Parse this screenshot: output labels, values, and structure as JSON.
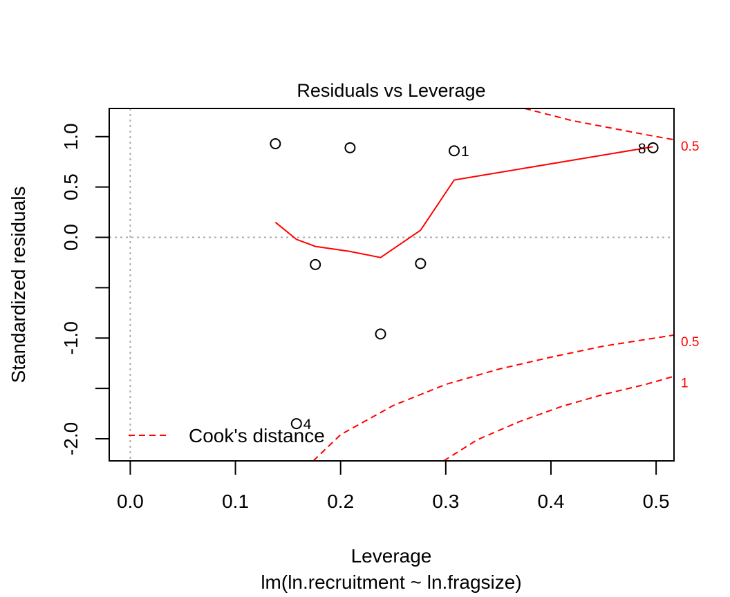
{
  "chart_data": {
    "type": "scatter",
    "title": "Residuals vs Leverage",
    "xlabel": "Leverage",
    "sublabel": "lm(ln.recruitment ~ ln.fragsize)",
    "ylabel": "Standardized residuals",
    "xlim": [
      -0.02,
      0.517
    ],
    "ylim": [
      -2.22,
      1.28
    ],
    "x_ticks": [
      {
        "value": 0.0,
        "label": "0.0"
      },
      {
        "value": 0.1,
        "label": "0.1"
      },
      {
        "value": 0.2,
        "label": "0.2"
      },
      {
        "value": 0.3,
        "label": "0.3"
      },
      {
        "value": 0.4,
        "label": "0.4"
      },
      {
        "value": 0.5,
        "label": "0.5"
      }
    ],
    "y_ticks": [
      {
        "value": 1.0,
        "label": "1.0"
      },
      {
        "value": 0.5,
        "label": "0.5"
      },
      {
        "value": 0.0,
        "label": "0.0"
      },
      {
        "value": -0.5,
        "label": ""
      },
      {
        "value": -1.0,
        "label": "-1.0"
      },
      {
        "value": -1.5,
        "label": ""
      },
      {
        "value": -2.0,
        "label": "-2.0"
      }
    ],
    "points": [
      {
        "x": 0.138,
        "y": 0.93,
        "label": ""
      },
      {
        "x": 0.209,
        "y": 0.89,
        "label": ""
      },
      {
        "x": 0.308,
        "y": 0.86,
        "label": "1"
      },
      {
        "x": 0.497,
        "y": 0.89,
        "label": "8"
      },
      {
        "x": 0.176,
        "y": -0.27,
        "label": ""
      },
      {
        "x": 0.276,
        "y": -0.26,
        "label": ""
      },
      {
        "x": 0.238,
        "y": -0.96,
        "label": ""
      },
      {
        "x": 0.158,
        "y": -1.85,
        "label": "4"
      }
    ],
    "smoother": {
      "color": "#ff0000",
      "x": [
        0.138,
        0.158,
        0.176,
        0.209,
        0.238,
        0.276,
        0.308,
        0.497
      ],
      "y": [
        0.15,
        -0.02,
        -0.09,
        -0.14,
        -0.2,
        0.07,
        0.57,
        0.9
      ]
    },
    "reference_lines": {
      "h_zero": 0.0,
      "v_zero": 0.0,
      "color": "#aaaaaa"
    },
    "cooks_distance": {
      "color": "#ff0000",
      "contour_labels": [
        "0.5",
        "0.5",
        "1"
      ],
      "contours": [
        {
          "x": [
            0.375,
            0.42,
            0.46,
            0.49,
            0.517
          ],
          "y": [
            1.28,
            1.16,
            1.08,
            1.02,
            0.97
          ]
        },
        {
          "x": [
            0.174,
            0.2,
            0.25,
            0.3,
            0.35,
            0.4,
            0.45,
            0.517
          ],
          "y": [
            -2.22,
            -1.96,
            -1.67,
            -1.46,
            -1.31,
            -1.19,
            -1.08,
            -0.97
          ]
        },
        {
          "x": [
            0.298,
            0.33,
            0.37,
            0.41,
            0.45,
            0.49,
            0.517
          ],
          "y": [
            -2.22,
            -2.01,
            -1.83,
            -1.68,
            -1.56,
            -1.46,
            -1.38
          ]
        }
      ]
    },
    "legend": {
      "position": "bottom-left",
      "entries": [
        {
          "name": "Cook's distance",
          "color": "#ff0000",
          "style": "dashed"
        }
      ]
    }
  }
}
